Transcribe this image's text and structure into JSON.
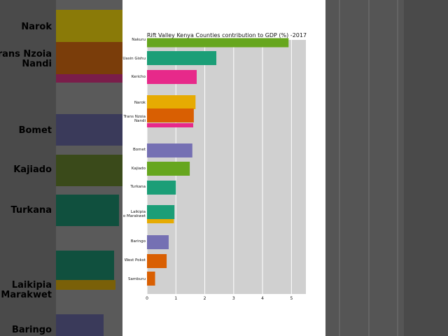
{
  "chart_data": {
    "type": "bar",
    "orientation": "horizontal",
    "title": "Rift Valley Kenya Counties contribution to GDP (%) -2017",
    "xlabel": "",
    "ylabel": "",
    "xlim": [
      0,
      5.5
    ],
    "xticks": [
      "0",
      "1",
      "2",
      "3",
      "4",
      "5"
    ],
    "grid": true,
    "categories": [
      "Nakuru",
      "Uasin Gishu",
      "Kericho",
      "Narok",
      "Trans Nzoia",
      "Nandi",
      "Bomet",
      "Kajiado",
      "Turkana",
      "Laikipia",
      "Elgeyo Marakwet",
      "Baringo",
      "West Pokot",
      "Samburu"
    ],
    "tick_labels": [
      "Nakuru",
      "Uasin Gishu",
      "Kericho",
      "Narok",
      "Trans Nzoia\nNandi",
      "Bomet",
      "Kajiado",
      "Turkana",
      "Laikipia\no Marakwet",
      "Baringo",
      "West Pokot",
      "Samburu"
    ],
    "values": [
      4.9,
      2.4,
      1.72,
      1.68,
      1.62,
      1.6,
      1.57,
      1.48,
      1.0,
      0.95,
      0.93,
      0.75,
      0.68,
      0.28
    ],
    "colors": [
      "#66a61e",
      "#1b9e77",
      "#e7298a",
      "#e6ab02",
      "#d95f02",
      "#e7298a",
      "#7570b3",
      "#66a61e",
      "#1b9e77",
      "#1b9e77",
      "#e6ab02",
      "#7570b3",
      "#d95f02",
      "#d95f02"
    ]
  },
  "background_zoom": {
    "labels": [
      "Narok",
      "Trans Nzoia\nNandi",
      "Bomet",
      "Kajiado",
      "Turkana",
      "Laikipia\no Marakwet",
      "Baringo"
    ]
  }
}
